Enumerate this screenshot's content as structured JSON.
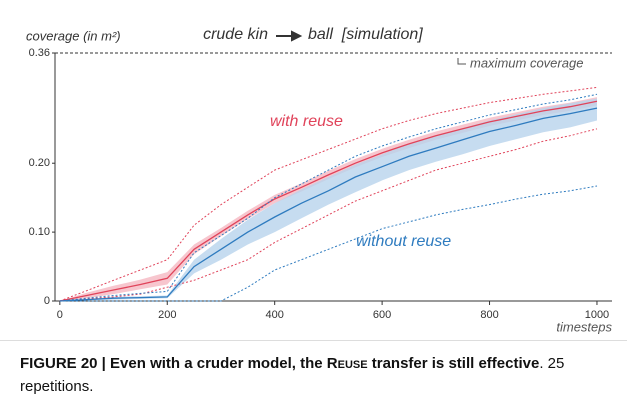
{
  "chart_data": {
    "type": "line",
    "title": "crude kin",
    "title_target": "ball  [simulation]",
    "ylabel": "coverage (in m²)",
    "xlabel": "timesteps",
    "annotations": {
      "max": "maximum coverage",
      "with": "with reuse",
      "without": "without reuse"
    },
    "x": [
      0,
      50,
      100,
      150,
      200,
      250,
      300,
      350,
      400,
      450,
      500,
      550,
      600,
      650,
      700,
      750,
      800,
      850,
      900,
      950,
      1000
    ],
    "xlim": [
      -9,
      1028
    ],
    "xticks": [
      0,
      200,
      400,
      600,
      800,
      1000
    ],
    "ylim": [
      0,
      0.36
    ],
    "yticks": [
      0,
      {
        "value": 0.1,
        "label": "0.10"
      },
      {
        "value": 0.2,
        "label": "0.20"
      },
      0.36
    ],
    "grid": false,
    "series": [
      {
        "name": "with reuse",
        "color": "#e0435a",
        "band_color": "#f5b8c2",
        "values": [
          0,
          0.008,
          0.016,
          0.024,
          0.033,
          0.075,
          0.1,
          0.125,
          0.148,
          0.165,
          0.183,
          0.2,
          0.215,
          0.228,
          0.24,
          0.25,
          0.26,
          0.268,
          0.276,
          0.282,
          0.29
        ],
        "lower": [
          0,
          0.004,
          0.01,
          0.017,
          0.024,
          0.068,
          0.094,
          0.119,
          0.142,
          0.159,
          0.177,
          0.194,
          0.209,
          0.222,
          0.234,
          0.244,
          0.254,
          0.262,
          0.27,
          0.276,
          0.284
        ],
        "upper": [
          0,
          0.012,
          0.022,
          0.031,
          0.042,
          0.082,
          0.106,
          0.131,
          0.154,
          0.171,
          0.189,
          0.206,
          0.221,
          0.234,
          0.246,
          0.256,
          0.266,
          0.274,
          0.282,
          0.288,
          0.296
        ],
        "min": [
          0,
          0.003,
          0.006,
          0.01,
          0.02,
          0.03,
          0.045,
          0.06,
          0.085,
          0.105,
          0.125,
          0.145,
          0.16,
          0.175,
          0.19,
          0.2,
          0.21,
          0.22,
          0.232,
          0.24,
          0.25
        ],
        "max": [
          0,
          0.015,
          0.03,
          0.045,
          0.06,
          0.11,
          0.14,
          0.165,
          0.19,
          0.205,
          0.22,
          0.235,
          0.25,
          0.262,
          0.272,
          0.28,
          0.288,
          0.294,
          0.3,
          0.305,
          0.31
        ]
      },
      {
        "name": "without reuse",
        "color": "#2e7bbf",
        "band_color": "#b8d3ec",
        "values": [
          0,
          0.002,
          0.004,
          0.005,
          0.006,
          0.05,
          0.075,
          0.1,
          0.122,
          0.142,
          0.16,
          0.18,
          0.195,
          0.21,
          0.222,
          0.234,
          0.246,
          0.255,
          0.265,
          0.272,
          0.28
        ],
        "lower": [
          0,
          0.001,
          0.002,
          0.003,
          0.004,
          0.04,
          0.06,
          0.082,
          0.1,
          0.12,
          0.14,
          0.158,
          0.175,
          0.19,
          0.202,
          0.213,
          0.225,
          0.235,
          0.245,
          0.252,
          0.262
        ],
        "upper": [
          0,
          0.003,
          0.006,
          0.007,
          0.008,
          0.06,
          0.09,
          0.118,
          0.142,
          0.162,
          0.18,
          0.198,
          0.213,
          0.228,
          0.24,
          0.251,
          0.262,
          0.271,
          0.28,
          0.287,
          0.294
        ],
        "min": [
          0,
          0,
          0,
          0,
          0,
          0,
          0,
          0.02,
          0.045,
          0.06,
          0.075,
          0.09,
          0.105,
          0.115,
          0.125,
          0.133,
          0.14,
          0.148,
          0.155,
          0.16,
          0.167
        ],
        "max": [
          0,
          0.004,
          0.008,
          0.011,
          0.014,
          0.07,
          0.095,
          0.12,
          0.15,
          0.17,
          0.19,
          0.21,
          0.225,
          0.238,
          0.25,
          0.26,
          0.27,
          0.278,
          0.286,
          0.292,
          0.3
        ]
      }
    ]
  },
  "caption": {
    "bold_start": "FIGURE 20 | Even with a cruder model, the ",
    "smallcaps": "Reuse",
    "bold_end": " transfer is still effective",
    "rest": ". 25 repetitions."
  }
}
